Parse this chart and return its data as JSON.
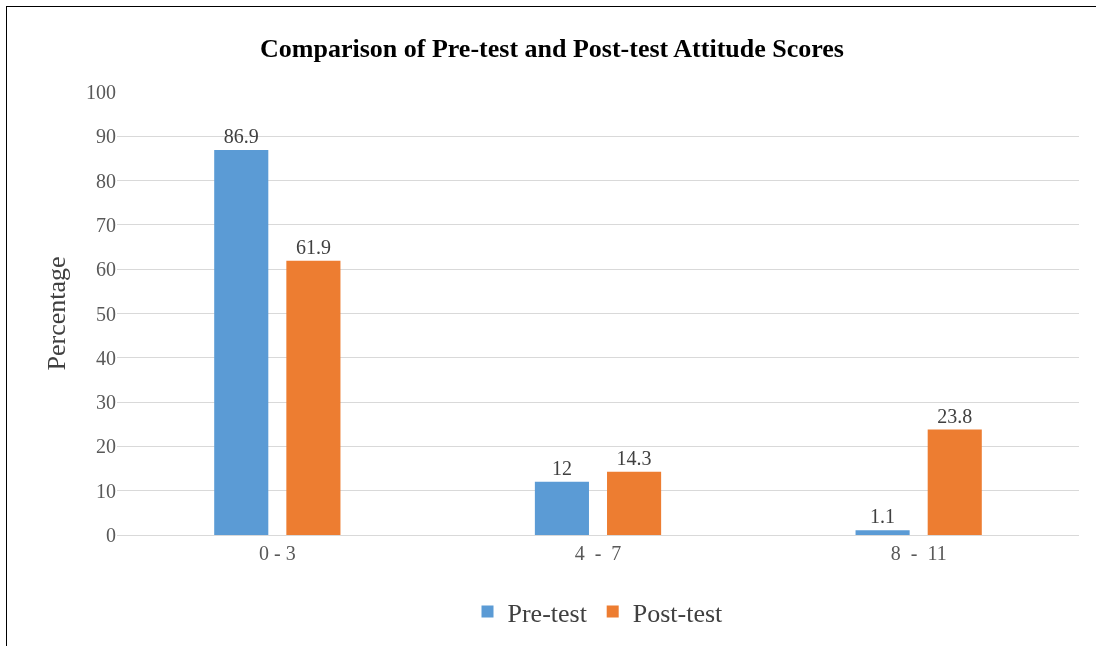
{
  "chart_data": {
    "type": "bar",
    "title": "Comparison of Pre-test and Post-test Attitude Scores",
    "ylabel": "Percentage",
    "categories": [
      "0 - 3",
      "4  -  7",
      "8  -  11"
    ],
    "series": [
      {
        "name": "Pre-test",
        "color": "#5b9bd5",
        "values": [
          86.9,
          12,
          1.1
        ]
      },
      {
        "name": "Post-test",
        "color": "#ed7d31",
        "values": [
          61.9,
          14.3,
          23.8
        ]
      }
    ],
    "ylim": [
      0,
      100
    ],
    "yticks": [
      0,
      10,
      20,
      30,
      40,
      50,
      60,
      70,
      80,
      90,
      100
    ],
    "grid": "y",
    "legend": "bottom",
    "data_labels": true
  }
}
